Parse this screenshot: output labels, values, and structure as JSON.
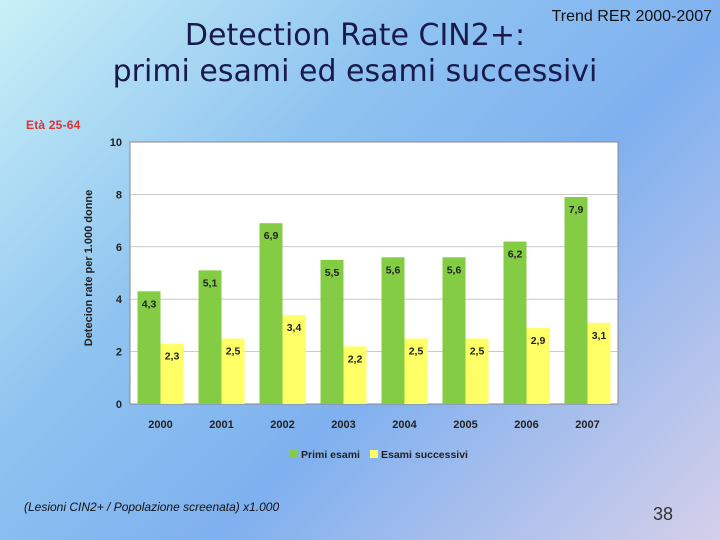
{
  "slide": {
    "title_line1": "Detection Rate CIN2+:",
    "title_line2": "primi esami ed esami successivi",
    "subtitle": "Trend RER 2000-2007",
    "age_label": "Età 25-64",
    "footnote": "(Lesioni CIN2+ / Popolazione screenata) x1.000",
    "page_number": "38"
  },
  "colors": {
    "primi": "#84cc44",
    "successivi": "#ffff66",
    "plot_bg": "#ffffff",
    "axis": "#888888",
    "grid": "#aaaaaa"
  },
  "chart_data": {
    "type": "bar",
    "categories": [
      "2000",
      "2001",
      "2002",
      "2003",
      "2004",
      "2005",
      "2006",
      "2007"
    ],
    "series": [
      {
        "name": "Primi esami",
        "values": [
          4.3,
          5.1,
          6.9,
          5.5,
          5.6,
          5.6,
          6.2,
          7.9
        ],
        "labels": [
          "4,3",
          "5,1",
          "6,9",
          "5,5",
          "5,6",
          "5,6",
          "6,2",
          "7,9"
        ]
      },
      {
        "name": "Esami successivi",
        "values": [
          2.3,
          2.5,
          3.4,
          2.2,
          2.5,
          2.5,
          2.9,
          3.1
        ],
        "labels": [
          "2,3",
          "2,5",
          "3,4",
          "2,2",
          "2,5",
          "2,5",
          "2,9",
          "3,1"
        ]
      }
    ],
    "ylabel": "Detecion rate per 1.000 donne",
    "ylim": [
      0,
      10
    ],
    "yticks": [
      0,
      2,
      4,
      6,
      8,
      10
    ],
    "grid": true,
    "legend": "bottom-center"
  }
}
